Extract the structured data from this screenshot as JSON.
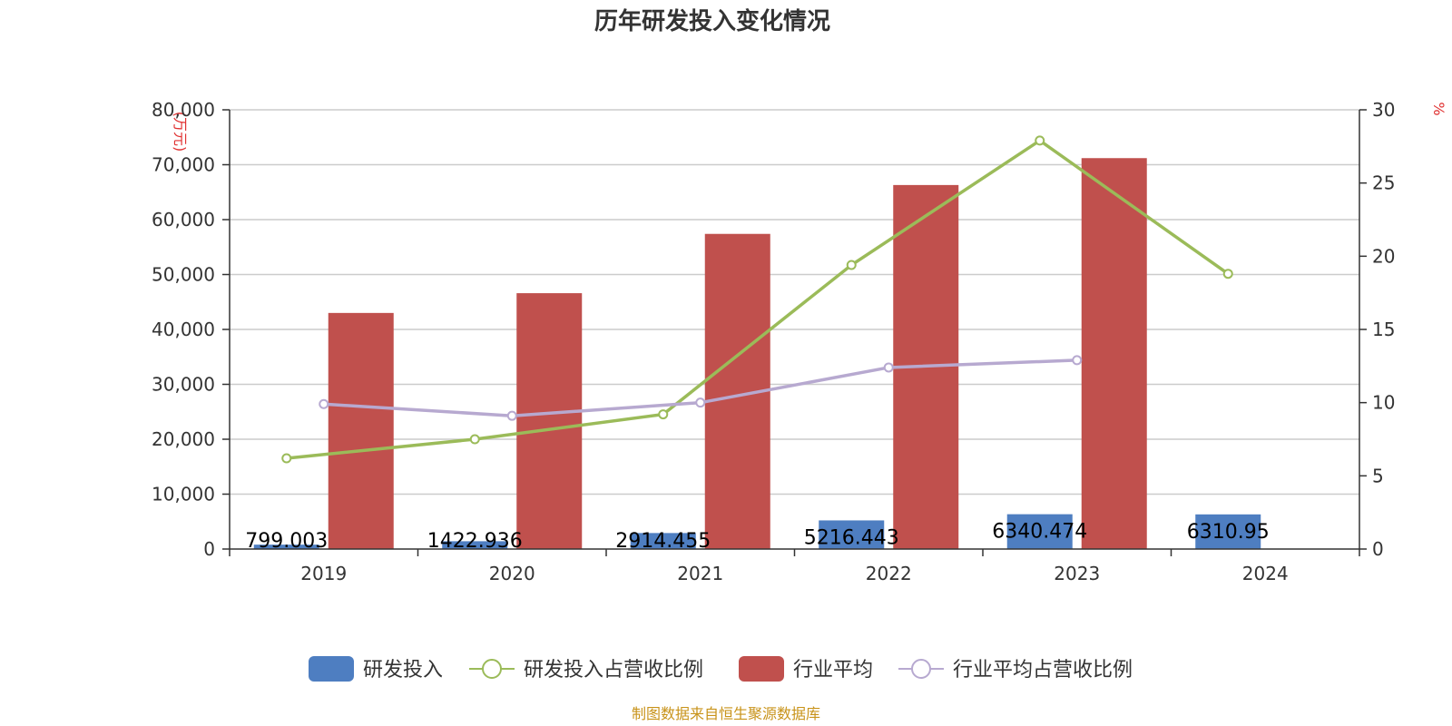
{
  "chart_data": {
    "type": "bar",
    "title": "历年研发投入变化情况",
    "categories": [
      "2019",
      "2020",
      "2021",
      "2022",
      "2023",
      "2024"
    ],
    "y_left": {
      "unit": "(万元)",
      "ylim": [
        0,
        80000
      ],
      "ticks": [
        0,
        10000,
        20000,
        30000,
        40000,
        50000,
        60000,
        70000,
        80000
      ],
      "tick_labels": [
        "0",
        "10,000",
        "20,000",
        "30,000",
        "40,000",
        "50,000",
        "60,000",
        "70,000",
        "80,000"
      ]
    },
    "y_right": {
      "unit": "%",
      "ylim": [
        0,
        30
      ],
      "ticks": [
        0,
        5,
        10,
        15,
        20,
        25,
        30
      ],
      "tick_labels": [
        "0",
        "5",
        "10",
        "15",
        "20",
        "25",
        "30"
      ]
    },
    "grid": true,
    "legend_position": "bottom-center",
    "series": [
      {
        "name": "研发投入",
        "kind": "bar",
        "axis": "left",
        "color": "#4e7ec1",
        "values": [
          799.003,
          1422.936,
          2914.455,
          5216.443,
          6340.474,
          6310.95
        ],
        "labels": [
          "799.003",
          "1422.936",
          "2914.455",
          "5216.443",
          "6340.474",
          "6310.95"
        ]
      },
      {
        "name": "研发投入占营收比例",
        "kind": "line",
        "axis": "right",
        "color": "#9bbb59",
        "values": [
          6.2,
          7.5,
          9.2,
          19.4,
          27.9,
          18.8
        ]
      },
      {
        "name": "行业平均",
        "kind": "bar",
        "axis": "left",
        "color": "#c0504d",
        "values": [
          43000,
          46600,
          57400,
          66300,
          71200,
          null
        ]
      },
      {
        "name": "行业平均占营收比例",
        "kind": "line",
        "axis": "right",
        "color": "#b7a9d0",
        "values": [
          9.9,
          9.1,
          10.0,
          12.4,
          12.9,
          null
        ]
      }
    ],
    "source": "制图数据来自恒生聚源数据库"
  }
}
